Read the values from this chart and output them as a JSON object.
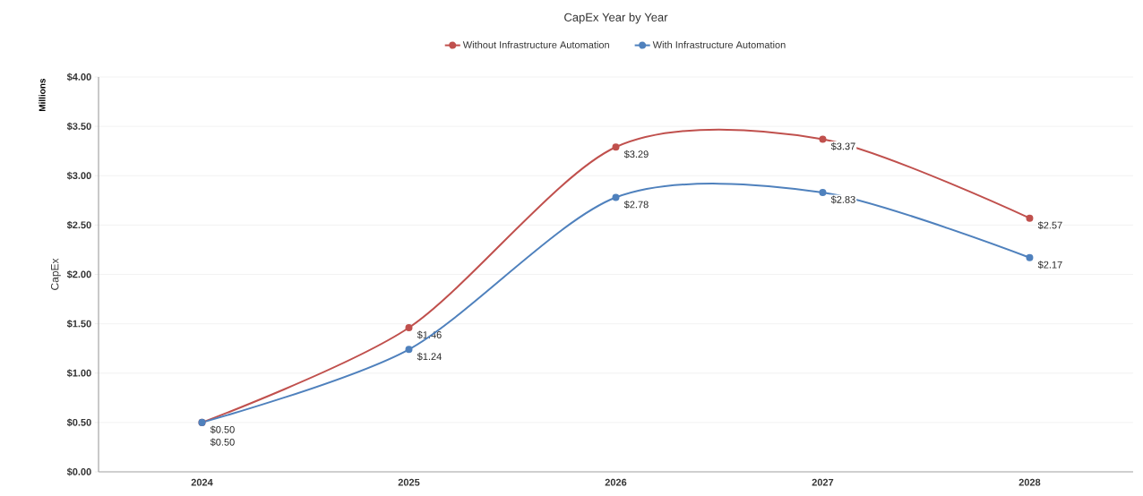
{
  "chart_data": {
    "type": "line",
    "title": "CapEx Year by Year",
    "ylabel": "CapEx",
    "annotations": [
      "Millions"
    ],
    "categories": [
      "2024",
      "2025",
      "2026",
      "2027",
      "2028"
    ],
    "series": [
      {
        "name": "Without Infrastructure Automation",
        "color": "#c0504d",
        "values": [
          0.5,
          1.46,
          3.29,
          3.37,
          2.57
        ],
        "value_labels": [
          "$0.50",
          "$1.46",
          "$3.29",
          "$3.37",
          "$2.57"
        ]
      },
      {
        "name": "With Infrastructure Automation",
        "color": "#4f81bd",
        "values": [
          0.5,
          1.24,
          2.78,
          2.83,
          2.17
        ],
        "value_labels": [
          "$0.50",
          "$1.24",
          "$2.78",
          "$2.83",
          "$2.17"
        ]
      }
    ],
    "ylim": [
      0,
      4
    ],
    "yticks": [
      {
        "value": 0,
        "label": "$0.00"
      },
      {
        "value": 0.5,
        "label": "$0.50"
      },
      {
        "value": 1,
        "label": "$1.00"
      },
      {
        "value": 1.5,
        "label": "$1.50"
      },
      {
        "value": 2,
        "label": "$2.00"
      },
      {
        "value": 2.5,
        "label": "$2.50"
      },
      {
        "value": 3,
        "label": "$3.00"
      },
      {
        "value": 3.5,
        "label": "$3.50"
      },
      {
        "value": 4,
        "label": "$4.00"
      }
    ],
    "grid": "y",
    "legend": "top",
    "marker": "circle",
    "line_style": "solid"
  }
}
